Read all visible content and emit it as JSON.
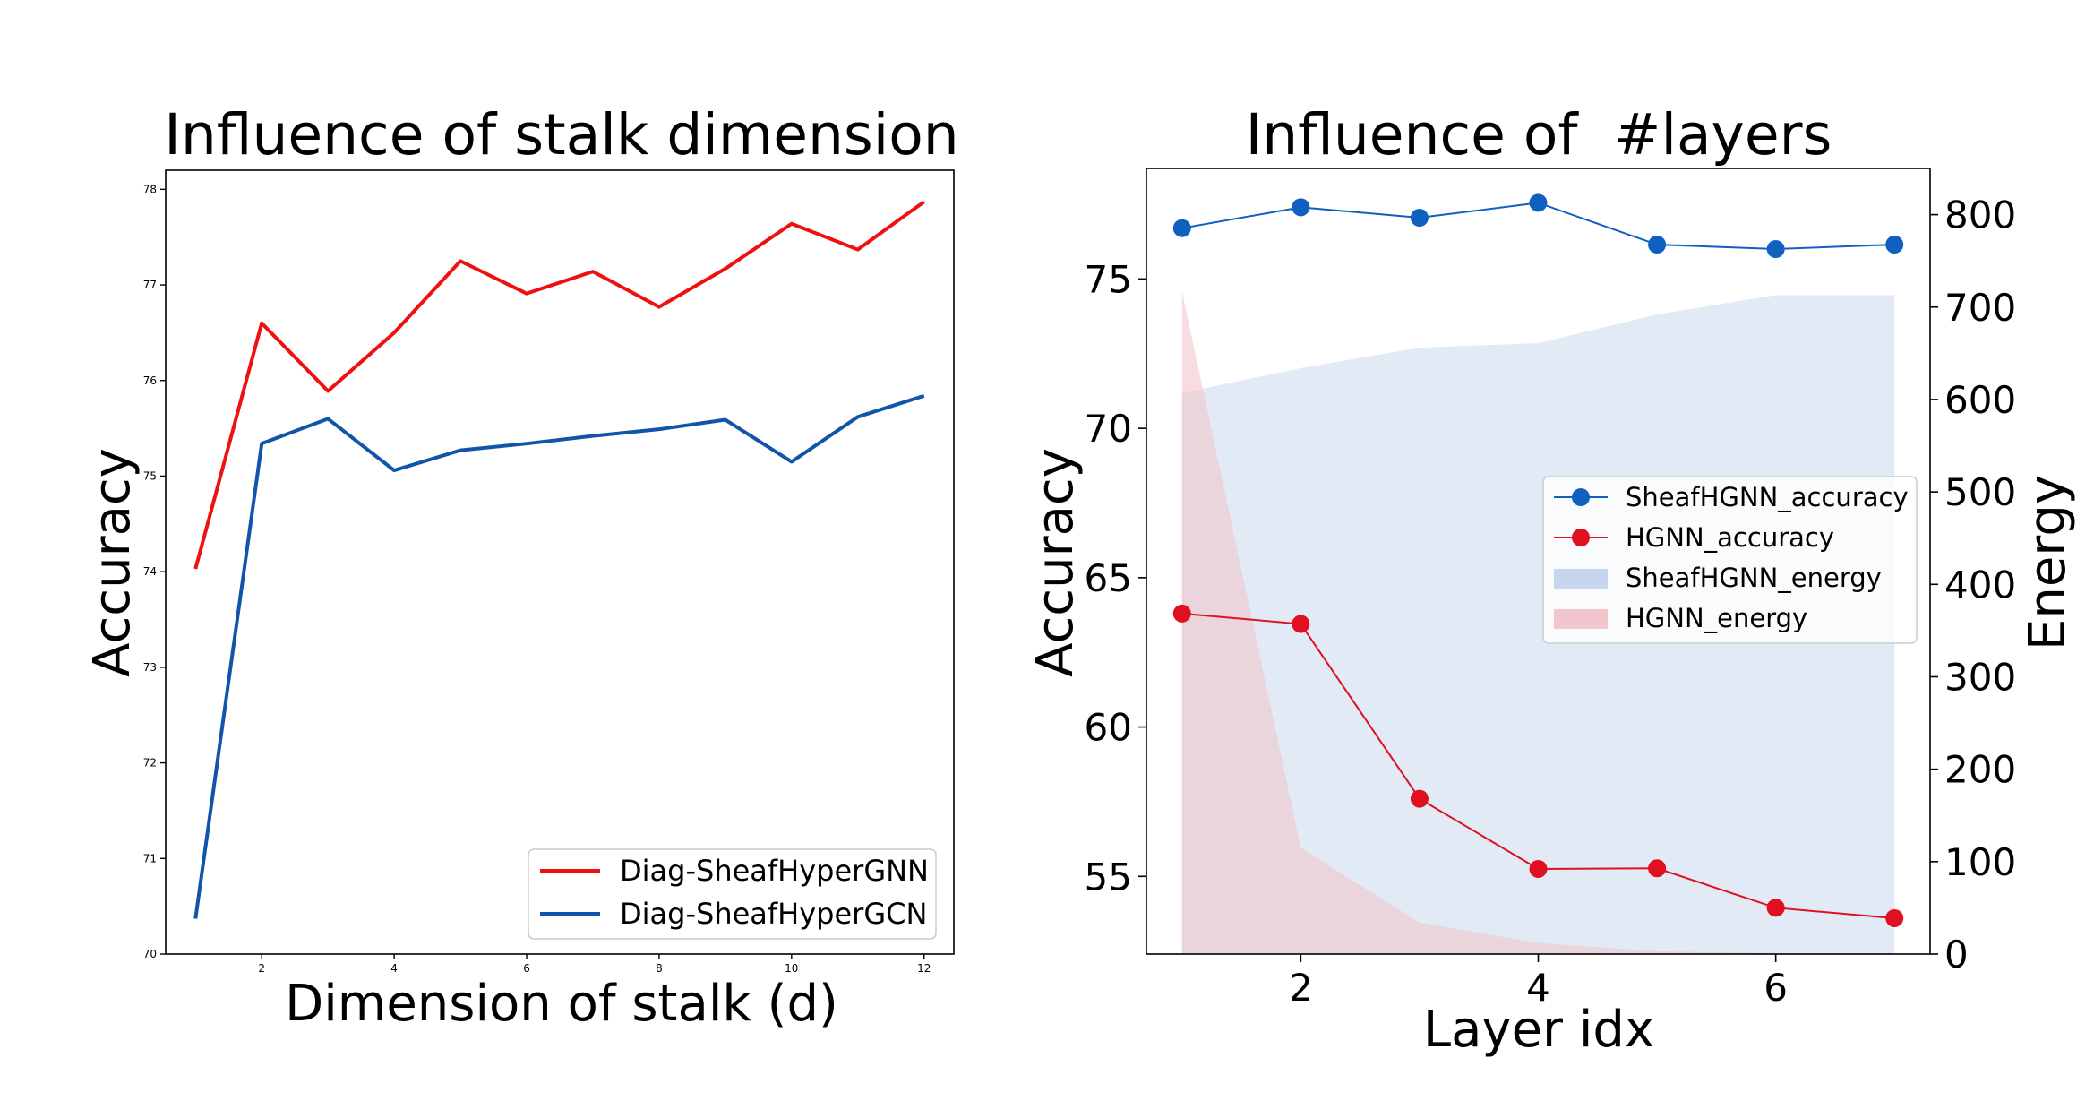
{
  "chart_data": [
    {
      "type": "line",
      "title": "Influence of stalk dimension",
      "xlabel": "Dimension of stalk (d)",
      "ylabel": "Accuracy",
      "xlim": [
        0.55,
        12.45
      ],
      "ylim": [
        70,
        78.2
      ],
      "xticks": [
        "2",
        "4",
        "6",
        "8",
        "10",
        "12"
      ],
      "yticks": [
        "70",
        "71",
        "72",
        "73",
        "74",
        "75",
        "76",
        "77",
        "78"
      ],
      "legend_position": "lower-right",
      "x": [
        1,
        2,
        3,
        4,
        5,
        6,
        7,
        8,
        9,
        10,
        11,
        12
      ],
      "series": [
        {
          "name": "Diag-SheafHyperGNN",
          "color": "#ee1111",
          "values": [
            74.03,
            76.6,
            75.89,
            76.5,
            77.25,
            76.91,
            77.14,
            76.77,
            77.17,
            77.64,
            77.37,
            77.87
          ]
        },
        {
          "name": "Diag-SheafHyperGCN",
          "color": "#1155aa",
          "values": [
            70.37,
            75.34,
            75.6,
            75.06,
            75.27,
            75.34,
            75.42,
            75.49,
            75.59,
            75.15,
            75.62,
            75.84
          ]
        }
      ]
    },
    {
      "type": "line",
      "title": "Influence of  #layers",
      "xlabel": "Layer idx",
      "ylabel": "Accuracy",
      "y2label": "Energy",
      "xlim": [
        0.7,
        7.3
      ],
      "ylim": [
        52.4,
        78.7
      ],
      "y2lim": [
        0,
        850
      ],
      "xticks": [
        "2",
        "4",
        "6"
      ],
      "yticks": [
        "55",
        "60",
        "65",
        "70",
        "75"
      ],
      "y2ticks": [
        "0",
        "100",
        "200",
        "300",
        "400",
        "500",
        "600",
        "700",
        "800"
      ],
      "legend_position": "center-right",
      "x": [
        1,
        2,
        3,
        4,
        5,
        6,
        7
      ],
      "series": [
        {
          "name": "SheafHGNN_accuracy",
          "color": "#1060c0",
          "kind": "line-marker",
          "axis": "left",
          "values": [
            76.7,
            77.4,
            77.05,
            77.55,
            76.15,
            76.0,
            76.15
          ]
        },
        {
          "name": "HGNN_accuracy",
          "color": "#e01020",
          "kind": "line-marker",
          "axis": "left",
          "values": [
            63.8,
            63.45,
            57.6,
            55.25,
            55.27,
            53.95,
            53.6
          ]
        },
        {
          "name": "SheafHGNN_energy",
          "color": "#c5d6ee",
          "kind": "area",
          "axis": "right",
          "values": [
            607,
            634,
            656,
            661,
            692,
            713,
            713
          ]
        },
        {
          "name": "HGNN_energy",
          "color": "#f2c6cc",
          "kind": "area",
          "axis": "right",
          "values": [
            717,
            115,
            34,
            12,
            3,
            1,
            0.5
          ]
        }
      ]
    }
  ]
}
